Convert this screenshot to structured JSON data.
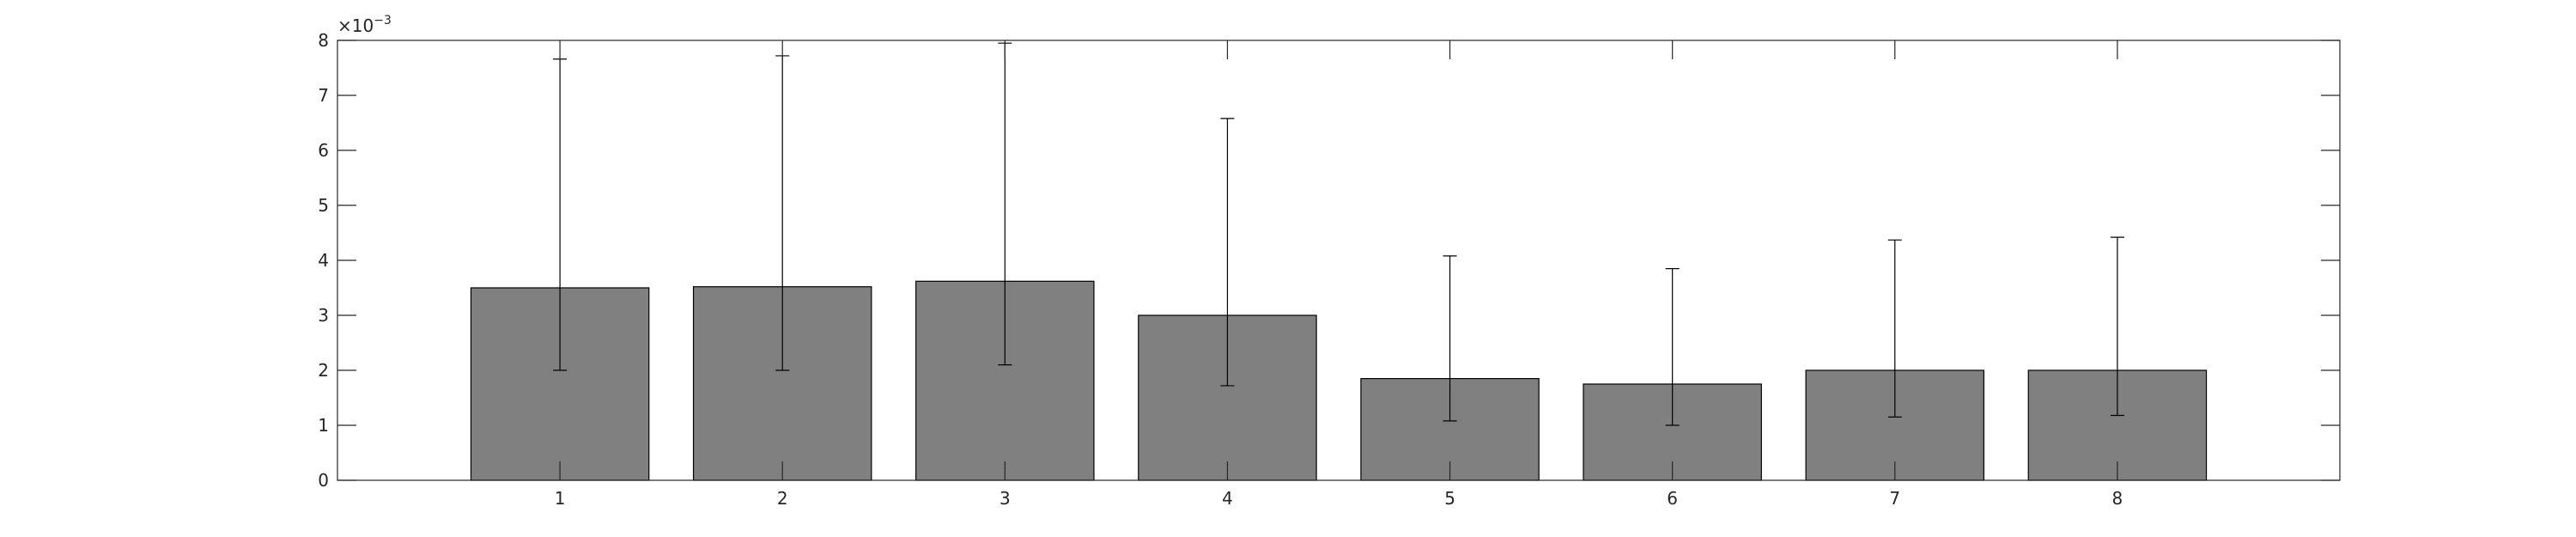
{
  "chart_data": {
    "type": "bar",
    "title": "",
    "xlabel": "",
    "ylabel": "",
    "categories": [
      "1",
      "2",
      "3",
      "4",
      "5",
      "6",
      "7",
      "8"
    ],
    "values": [
      0.0035,
      0.00352,
      0.00362,
      0.003,
      0.00185,
      0.00175,
      0.002,
      0.002
    ],
    "error_low": [
      0.002,
      0.002,
      0.0021,
      0.00172,
      0.00108,
      0.001,
      0.00115,
      0.00118
    ],
    "error_high": [
      0.00766,
      0.00772,
      0.00795,
      0.00658,
      0.00408,
      0.00385,
      0.00437,
      0.00442
    ],
    "xlim": [
      0,
      9
    ],
    "ylim": [
      0,
      0.008
    ],
    "yticks": [
      0,
      1,
      2,
      3,
      4,
      5,
      6,
      7,
      8
    ],
    "ytick_labels": [
      "0",
      "1",
      "2",
      "3",
      "4",
      "5",
      "6",
      "7",
      "8"
    ],
    "y_exponent_base": "×10",
    "y_exponent_power": "−3",
    "grid": false,
    "bar_color": "#808080",
    "edge_color": "#000000",
    "axis_color": "#262626"
  }
}
